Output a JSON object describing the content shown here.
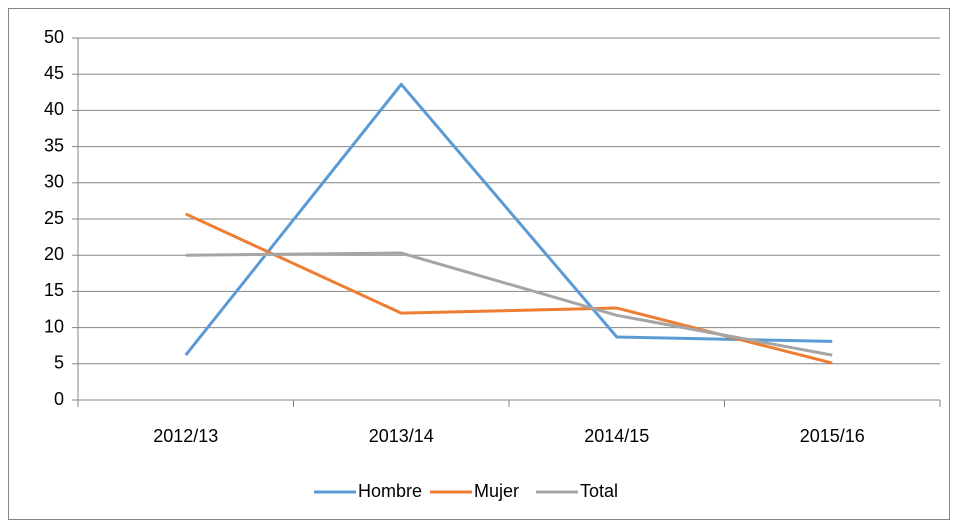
{
  "chart_data": {
    "type": "line",
    "categories": [
      "2012/13",
      "2013/14",
      "2014/15",
      "2015/16"
    ],
    "series": [
      {
        "name": "Hombre",
        "color": "#5b9bd5",
        "values": [
          6.2,
          43.6,
          8.7,
          8.1
        ]
      },
      {
        "name": "Mujer",
        "color": "#ed7d31",
        "values": [
          25.7,
          12.0,
          12.7,
          5.1
        ]
      },
      {
        "name": "Total",
        "color": "#a5a5a5",
        "values": [
          20.0,
          20.3,
          11.7,
          6.2
        ]
      }
    ],
    "ylim": [
      0,
      50
    ],
    "yticks": [
      0,
      5,
      10,
      15,
      20,
      25,
      30,
      35,
      40,
      45,
      50
    ],
    "grid": true,
    "legend": "bottom"
  }
}
